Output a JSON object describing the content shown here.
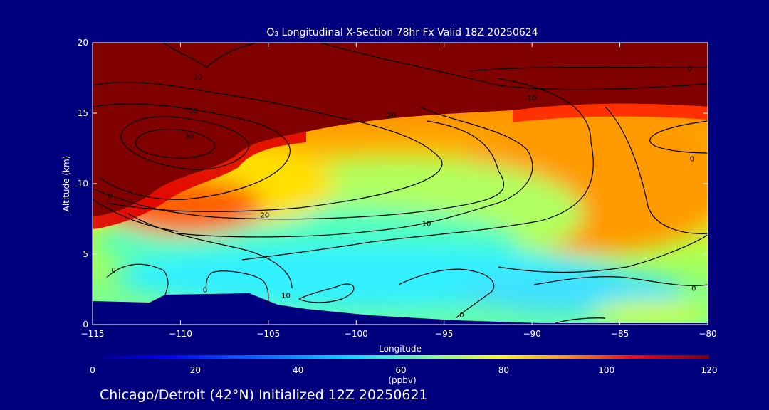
{
  "chart_data": {
    "type": "heatmap",
    "title": "O₃ Longitudinal X-Section 78hr  Fx Valid 18Z 20250624",
    "xlabel": "Longitude",
    "ylabel": "Altitude (km)",
    "xlim": [
      -115,
      -80
    ],
    "ylim": [
      0,
      20
    ],
    "x_ticks": [
      -115,
      -110,
      -105,
      -100,
      -95,
      -90,
      -85,
      -80
    ],
    "x_tick_labels": [
      "−115",
      "−110",
      "−105",
      "−100",
      "−95",
      "−90",
      "−85",
      "−80"
    ],
    "y_ticks": [
      0,
      5,
      10,
      15,
      20
    ],
    "y_tick_labels": [
      "0",
      "5",
      "10",
      "15",
      "20"
    ],
    "colorbar": {
      "label": "(ppbv)",
      "range": [
        0,
        120
      ],
      "ticks": [
        0,
        20,
        40,
        60,
        80,
        100,
        120
      ],
      "tick_labels": [
        "0",
        "20",
        "40",
        "60",
        "80",
        "100",
        "120"
      ],
      "colors": [
        "#00007f",
        "#0000ff",
        "#0080ff",
        "#00e0ff",
        "#80ff80",
        "#ffff00",
        "#ff8000",
        "#ff0000",
        "#800000"
      ]
    },
    "contour_levels": [
      0,
      10,
      20,
      30
    ],
    "contour_labels": [
      {
        "text": "10",
        "lon": -109,
        "alt": 17.6
      },
      {
        "text": "20",
        "lon": -109.3,
        "alt": 15.2
      },
      {
        "text": "30",
        "lon": -109.5,
        "alt": 13.4
      },
      {
        "text": "20",
        "lon": -98,
        "alt": 14.9
      },
      {
        "text": "10",
        "lon": -90,
        "alt": 16.1
      },
      {
        "text": "0",
        "lon": -81,
        "alt": 18.2
      },
      {
        "text": "0",
        "lon": -80.9,
        "alt": 11.8
      },
      {
        "text": "0",
        "lon": -114,
        "alt": 9.2
      },
      {
        "text": "20",
        "lon": -105.2,
        "alt": 7.8
      },
      {
        "text": "10",
        "lon": -96,
        "alt": 7.2
      },
      {
        "text": "0",
        "lon": -113.8,
        "alt": 3.9
      },
      {
        "text": "0",
        "lon": -108.6,
        "alt": 2.5
      },
      {
        "text": "10",
        "lon": -104,
        "alt": 2.1
      },
      {
        "text": "0",
        "lon": -80.8,
        "alt": 2.6
      },
      {
        "text": "0",
        "lon": -94,
        "alt": 0.7
      }
    ],
    "terrain": [
      [
        -115,
        1.6
      ],
      [
        -112,
        1.5
      ],
      [
        -111,
        2.0
      ],
      [
        -106,
        2.1
      ],
      [
        -104,
        1.4
      ],
      [
        -102,
        1.0
      ],
      [
        -98,
        0.6
      ],
      [
        -95,
        0.3
      ],
      [
        -90,
        0.1
      ],
      [
        -80,
        0.1
      ]
    ]
  },
  "footer": {
    "caption": "Chicago/Detroit (42°N) Initialized 12Z 20250621"
  }
}
